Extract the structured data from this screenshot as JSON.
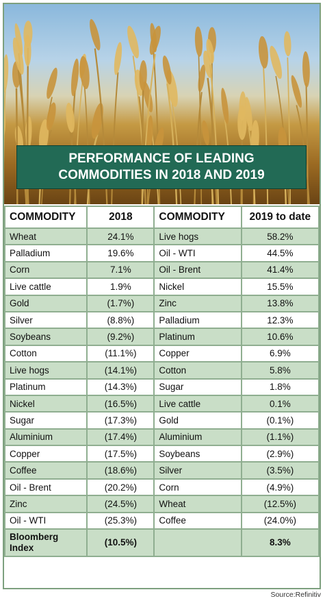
{
  "title_lines": [
    "PERFORMANCE OF LEADING",
    "COMMODITIES IN 2018 AND 2019"
  ],
  "headers": [
    "COMMODITY",
    "2018",
    "COMMODITY",
    "2019 to date"
  ],
  "rows": [
    [
      "Wheat",
      "24.1%",
      "Live hogs",
      "58.2%"
    ],
    [
      "Palladium",
      "19.6%",
      "Oil - WTI",
      "44.5%"
    ],
    [
      "Corn",
      "7.1%",
      "Oil - Brent",
      "41.4%"
    ],
    [
      "Live cattle",
      "1.9%",
      "Nickel",
      "15.5%"
    ],
    [
      "Gold",
      "(1.7%)",
      "Zinc",
      "13.8%"
    ],
    [
      "Silver",
      "(8.8%)",
      "Palladium",
      "12.3%"
    ],
    [
      "Soybeans",
      "(9.2%)",
      "Platinum",
      "10.6%"
    ],
    [
      "Cotton",
      "(11.1%)",
      "Copper",
      "6.9%"
    ],
    [
      "Live hogs",
      "(14.1%)",
      "Cotton",
      "5.8%"
    ],
    [
      "Platinum",
      "(14.3%)",
      "Sugar",
      "1.8%"
    ],
    [
      "Nickel",
      "(16.5%)",
      "Live cattle",
      "0.1%"
    ],
    [
      "Sugar",
      "(17.3%)",
      "Gold",
      "(0.1%)"
    ],
    [
      "Aluminium",
      "(17.4%)",
      "Aluminium",
      "(1.1%)"
    ],
    [
      "Copper",
      "(17.5%)",
      "Soybeans",
      "(2.9%)"
    ],
    [
      "Coffee",
      "(18.6%)",
      "Silver",
      "(3.5%)"
    ],
    [
      "Oil - Brent",
      "(20.2%)",
      "Corn",
      "(4.9%)"
    ],
    [
      "Zinc",
      "(24.5%)",
      "Wheat",
      "(12.5%)"
    ],
    [
      "Oil - WTI",
      "(25.3%)",
      "Coffee",
      "(24.0%)"
    ]
  ],
  "footer": {
    "label_line1": "Bloomberg",
    "label_line2": "Index",
    "value_2018": "(10.5%)",
    "value_2019": "8.3%"
  },
  "source": "Source:Refinitiv",
  "colors": {
    "banner": "#226a55",
    "shade": "#c9dec7",
    "border": "#8fae90"
  }
}
